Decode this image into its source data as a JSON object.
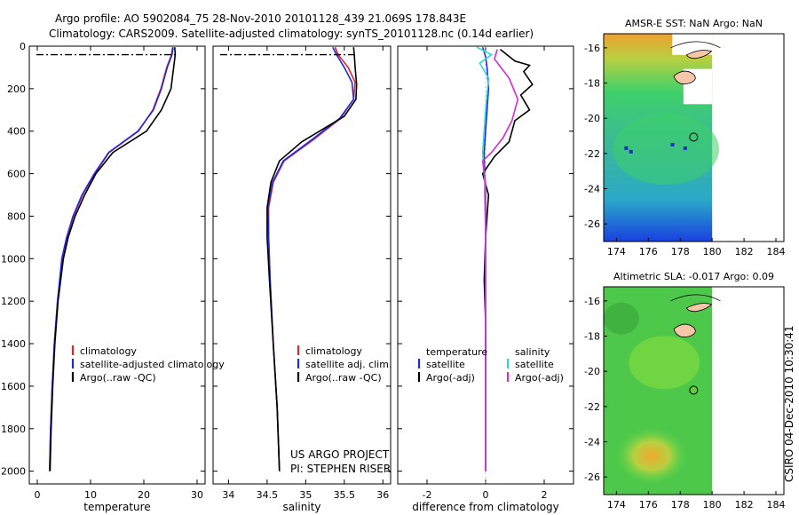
{
  "header": {
    "line1": "Argo profile: AO 5902084_75 28-Nov-2010 20101128_439 21.069S 178.843E",
    "line2": "Climatology: CARS2009. Satellite-adjusted climatology: synTS_20101128.nc (0.14d earlier)"
  },
  "footer": {
    "project": "US ARGO PROJECT",
    "pi": "PI: STEPHEN RISER",
    "credit": "CSIRO 04-Dec-2010 10:30:41"
  },
  "colors": {
    "climatology": "#e8202a",
    "satellite": "#1f2ae0",
    "argo": "#000000",
    "sat_sal": "#2fd6d6",
    "argo_sal": "#d62ad6"
  },
  "chart_data": [
    {
      "type": "line",
      "panel": "temperature",
      "xlabel": "temperature",
      "ylabel": "",
      "xlim": [
        -1.5,
        31.5
      ],
      "ylim": [
        2060,
        0
      ],
      "xticks": [
        0,
        10,
        20,
        30
      ],
      "yticks": [
        0,
        200,
        400,
        600,
        800,
        1000,
        1200,
        1400,
        1600,
        1800,
        2000
      ],
      "legend": [
        "climatology",
        "satellite-adjusted climatology",
        "Argo(..raw -QC)"
      ],
      "series": [
        {
          "name": "climatology",
          "color": "#e8202a",
          "points": [
            [
              25.4,
              5
            ],
            [
              25.2,
              40
            ],
            [
              24.3,
              100
            ],
            [
              23.2,
              200
            ],
            [
              21.7,
              300
            ],
            [
              19.0,
              400
            ],
            [
              13.5,
              500
            ],
            [
              10.8,
              600
            ],
            [
              8.5,
              700
            ],
            [
              6.8,
              800
            ],
            [
              5.6,
              900
            ],
            [
              4.7,
              1000
            ],
            [
              3.8,
              1200
            ],
            [
              3.2,
              1400
            ],
            [
              2.8,
              1600
            ],
            [
              2.5,
              1800
            ],
            [
              2.3,
              2000
            ]
          ]
        },
        {
          "name": "satellite-adjusted climatology",
          "color": "#1f2ae0",
          "points": [
            [
              25.5,
              5
            ],
            [
              25.3,
              40
            ],
            [
              24.4,
              100
            ],
            [
              23.3,
              200
            ],
            [
              21.8,
              300
            ],
            [
              18.9,
              400
            ],
            [
              13.4,
              500
            ],
            [
              10.7,
              600
            ],
            [
              8.4,
              700
            ],
            [
              6.7,
              800
            ],
            [
              5.5,
              900
            ],
            [
              4.6,
              1000
            ],
            [
              3.8,
              1200
            ],
            [
              3.2,
              1400
            ],
            [
              2.8,
              1600
            ],
            [
              2.5,
              1800
            ],
            [
              2.3,
              2000
            ]
          ]
        },
        {
          "name": "Argo(..raw -QC)",
          "color": "#000000",
          "points": [
            [
              25.8,
              5
            ],
            [
              25.9,
              40
            ],
            [
              25.6,
              100
            ],
            [
              25.1,
              200
            ],
            [
              23.3,
              300
            ],
            [
              20.5,
              400
            ],
            [
              14.2,
              500
            ],
            [
              11.0,
              600
            ],
            [
              8.9,
              700
            ],
            [
              7.1,
              800
            ],
            [
              5.8,
              900
            ],
            [
              4.9,
              1000
            ],
            [
              3.9,
              1200
            ],
            [
              3.3,
              1400
            ],
            [
              2.9,
              1600
            ],
            [
              2.6,
              1800
            ],
            [
              2.4,
              2000
            ]
          ]
        }
      ]
    },
    {
      "type": "line",
      "panel": "salinity",
      "xlabel": "salinity",
      "ylabel": "",
      "xlim": [
        33.8,
        36.1
      ],
      "ylim": [
        2060,
        0
      ],
      "xticks": [
        34,
        34.5,
        35,
        35.5,
        36
      ],
      "legend": [
        "climatology",
        "satellite adj. clim.",
        "Argo(..raw -QC)"
      ],
      "series": [
        {
          "name": "climatology",
          "color": "#e8202a",
          "points": [
            [
              35.38,
              5
            ],
            [
              35.42,
              40
            ],
            [
              35.55,
              100
            ],
            [
              35.64,
              170
            ],
            [
              35.62,
              250
            ],
            [
              35.45,
              340
            ],
            [
              35.1,
              440
            ],
            [
              34.72,
              540
            ],
            [
              34.58,
              640
            ],
            [
              34.52,
              760
            ],
            [
              34.52,
              900
            ],
            [
              34.54,
              1100
            ],
            [
              34.58,
              1400
            ],
            [
              34.63,
              1700
            ],
            [
              34.66,
              2000
            ]
          ]
        },
        {
          "name": "satellite adj. clim.",
          "color": "#1f2ae0",
          "points": [
            [
              35.35,
              5
            ],
            [
              35.4,
              40
            ],
            [
              35.5,
              100
            ],
            [
              35.6,
              170
            ],
            [
              35.62,
              250
            ],
            [
              35.44,
              340
            ],
            [
              35.08,
              440
            ],
            [
              34.71,
              540
            ],
            [
              34.57,
              640
            ],
            [
              34.51,
              760
            ],
            [
              34.52,
              900
            ],
            [
              34.54,
              1100
            ],
            [
              34.58,
              1400
            ],
            [
              34.63,
              1700
            ],
            [
              34.66,
              2000
            ]
          ]
        },
        {
          "name": "Argo(..raw -QC)",
          "color": "#000000",
          "points": [
            [
              35.62,
              5
            ],
            [
              35.63,
              40
            ],
            [
              35.64,
              100
            ],
            [
              35.66,
              180
            ],
            [
              35.65,
              250
            ],
            [
              35.5,
              330
            ],
            [
              34.95,
              450
            ],
            [
              34.66,
              540
            ],
            [
              34.55,
              640
            ],
            [
              34.5,
              760
            ],
            [
              34.5,
              900
            ],
            [
              34.53,
              1100
            ],
            [
              34.58,
              1400
            ],
            [
              34.63,
              1700
            ],
            [
              34.66,
              2000
            ]
          ]
        }
      ]
    },
    {
      "type": "line",
      "panel": "difference",
      "xlabel": "difference from climatology",
      "ylabel": "",
      "xlim": [
        -3.0,
        3.0
      ],
      "ylim": [
        2060,
        0
      ],
      "xticks": [
        -2,
        0,
        2
      ],
      "legend": [
        "temperature",
        "satellite",
        "Argo(-adj)",
        "salinity",
        "satellite",
        "Argo(-adj)"
      ],
      "series": [
        {
          "name": "temperature satellite",
          "color": "#1f2ae0",
          "points": [
            [
              -0.1,
              5
            ],
            [
              0.0,
              50
            ],
            [
              0.05,
              100
            ],
            [
              0.1,
              200
            ],
            [
              0.05,
              300
            ],
            [
              -0.05,
              500
            ],
            [
              -0.02,
              700
            ],
            [
              0.0,
              900
            ],
            [
              0.0,
              1200
            ],
            [
              0.0,
              1600
            ],
            [
              0.0,
              2000
            ]
          ]
        },
        {
          "name": "temperature Argo(-adj)",
          "color": "#000000",
          "points": [
            [
              0.5,
              15
            ],
            [
              1.0,
              70
            ],
            [
              1.5,
              90
            ],
            [
              1.3,
              120
            ],
            [
              1.6,
              180
            ],
            [
              1.2,
              230
            ],
            [
              1.5,
              300
            ],
            [
              1.0,
              350
            ],
            [
              0.8,
              450
            ],
            [
              0.3,
              520
            ],
            [
              -0.1,
              600
            ],
            [
              0.1,
              700
            ],
            [
              0.0,
              900
            ],
            [
              -0.05,
              1100
            ],
            [
              0.0,
              1300
            ],
            [
              0.0,
              1600
            ],
            [
              0.0,
              2000
            ]
          ]
        },
        {
          "name": "salinity satellite",
          "color": "#2fd6d6",
          "points": [
            [
              -0.3,
              5
            ],
            [
              0.2,
              40
            ],
            [
              -0.2,
              80
            ],
            [
              0.1,
              150
            ],
            [
              0.0,
              300
            ],
            [
              -0.1,
              500
            ],
            [
              0.0,
              700
            ],
            [
              0.0,
              1000
            ],
            [
              0.0,
              1500
            ],
            [
              0.0,
              2000
            ]
          ]
        },
        {
          "name": "salinity Argo(-adj)",
          "color": "#d62ad6",
          "points": [
            [
              0.4,
              15
            ],
            [
              0.3,
              60
            ],
            [
              0.8,
              150
            ],
            [
              1.1,
              250
            ],
            [
              0.9,
              350
            ],
            [
              0.6,
              430
            ],
            [
              0.2,
              500
            ],
            [
              -0.1,
              540
            ],
            [
              0.0,
              650
            ],
            [
              0.0,
              900
            ],
            [
              0.0,
              1200
            ],
            [
              0.0,
              1600
            ],
            [
              0.0,
              2000
            ]
          ]
        }
      ]
    },
    {
      "type": "heatmap",
      "panel": "sst-map",
      "title": "AMSR-E SST: NaN Argo: NaN",
      "xlim": [
        173.2,
        184.5
      ],
      "ylim": [
        -27,
        -15.2
      ],
      "xticks": [
        174,
        176,
        178,
        180,
        182,
        184
      ],
      "yticks": [
        -16,
        -18,
        -20,
        -22,
        -24,
        -26
      ],
      "argo_position": [
        178.84,
        -21.07
      ]
    },
    {
      "type": "heatmap",
      "panel": "sla-map",
      "title": "Altimetric SLA: -0.017 Argo: 0.09",
      "xlim": [
        173.2,
        184.5
      ],
      "ylim": [
        -27,
        -15.2
      ],
      "xticks": [
        174,
        176,
        178,
        180,
        182,
        184
      ],
      "yticks": [
        -16,
        -18,
        -20,
        -22,
        -24,
        -26
      ],
      "argo_position": [
        178.84,
        -21.07
      ]
    }
  ]
}
